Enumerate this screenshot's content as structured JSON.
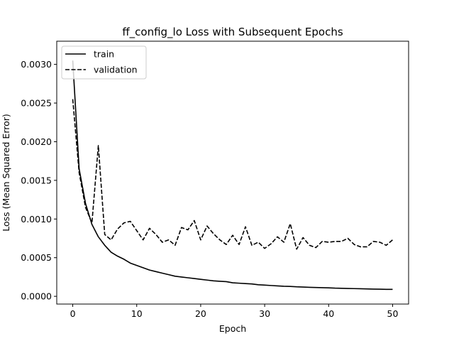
{
  "chart_data": {
    "type": "line",
    "title": "ff_config_lo Loss with Subsequent Epochs",
    "xlabel": "Epoch",
    "ylabel": "Loss (Mean Squared Error)",
    "xlim": [
      -2.5,
      52.5
    ],
    "ylim": [
      -0.0001,
      0.0033
    ],
    "xticks": [
      0,
      10,
      20,
      30,
      40,
      50
    ],
    "xtick_labels": [
      "0",
      "10",
      "20",
      "30",
      "40",
      "50"
    ],
    "yticks": [
      0.0,
      0.0005,
      0.001,
      0.0015,
      0.002,
      0.0025,
      0.003
    ],
    "ytick_labels": [
      "0.0000",
      "0.0005",
      "0.0010",
      "0.0015",
      "0.0020",
      "0.0025",
      "0.0030"
    ],
    "grid": false,
    "legend_position": "top-left",
    "x": [
      0,
      1,
      2,
      3,
      4,
      5,
      6,
      7,
      8,
      9,
      10,
      11,
      12,
      13,
      14,
      15,
      16,
      17,
      18,
      19,
      20,
      21,
      22,
      23,
      24,
      25,
      26,
      27,
      28,
      29,
      30,
      31,
      32,
      33,
      34,
      35,
      36,
      37,
      38,
      39,
      40,
      41,
      42,
      43,
      44,
      45,
      46,
      47,
      48,
      49,
      50
    ],
    "series": [
      {
        "name": "train",
        "style": "solid",
        "color": "#000000",
        "values": [
          0.00305,
          0.00165,
          0.0012,
          0.00093,
          0.00077,
          0.00066,
          0.00057,
          0.00052,
          0.00048,
          0.00043,
          0.0004,
          0.00037,
          0.00034,
          0.00032,
          0.0003,
          0.00028,
          0.00026,
          0.00025,
          0.00024,
          0.00023,
          0.00022,
          0.00021,
          0.0002,
          0.000195,
          0.00019,
          0.000175,
          0.00017,
          0.000165,
          0.00016,
          0.00015,
          0.000145,
          0.00014,
          0.000135,
          0.00013,
          0.000128,
          0.000123,
          0.00012,
          0.000117,
          0.000114,
          0.000112,
          0.00011,
          0.000106,
          0.000104,
          0.000102,
          0.0001,
          9.8e-05,
          9.6e-05,
          9.4e-05,
          9.2e-05,
          9e-05,
          9e-05
        ]
      },
      {
        "name": "validation",
        "style": "dashed",
        "color": "#000000",
        "values": [
          0.00255,
          0.0016,
          0.00115,
          0.00095,
          0.00195,
          0.0008,
          0.00073,
          0.00087,
          0.00095,
          0.00097,
          0.00085,
          0.00073,
          0.00088,
          0.0008,
          0.0007,
          0.00073,
          0.00066,
          0.00089,
          0.00086,
          0.00098,
          0.00073,
          0.00091,
          0.00081,
          0.00073,
          0.00067,
          0.00079,
          0.00067,
          0.0009,
          0.00066,
          0.0007,
          0.00062,
          0.00068,
          0.00077,
          0.0007,
          0.00094,
          0.00061,
          0.00076,
          0.00066,
          0.00063,
          0.00071,
          0.0007,
          0.00071,
          0.00071,
          0.00075,
          0.00067,
          0.00064,
          0.00064,
          0.00071,
          0.0007,
          0.00066,
          0.00073
        ]
      }
    ]
  }
}
